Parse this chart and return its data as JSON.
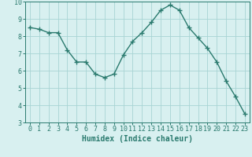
{
  "x": [
    0,
    1,
    2,
    3,
    4,
    5,
    6,
    7,
    8,
    9,
    10,
    11,
    12,
    13,
    14,
    15,
    16,
    17,
    18,
    19,
    20,
    21,
    22,
    23
  ],
  "y": [
    8.5,
    8.4,
    8.2,
    8.2,
    7.2,
    6.5,
    6.5,
    5.8,
    5.6,
    5.8,
    6.9,
    7.7,
    8.2,
    8.8,
    9.5,
    9.8,
    9.5,
    8.5,
    7.9,
    7.3,
    6.5,
    5.4,
    4.5,
    3.5
  ],
  "line_color": "#2a7a6e",
  "marker": "+",
  "marker_size": 4,
  "marker_linewidth": 1.0,
  "line_width": 1.0,
  "bg_color": "#d8f0f0",
  "grid_color": "#a8d4d4",
  "xlabel": "Humidex (Indice chaleur)",
  "xlim": [
    -0.5,
    23.5
  ],
  "ylim": [
    3,
    10
  ],
  "yticks": [
    3,
    4,
    5,
    6,
    7,
    8,
    9,
    10
  ],
  "xticks": [
    0,
    1,
    2,
    3,
    4,
    5,
    6,
    7,
    8,
    9,
    10,
    11,
    12,
    13,
    14,
    15,
    16,
    17,
    18,
    19,
    20,
    21,
    22,
    23
  ],
  "label_fontsize": 7,
  "tick_fontsize": 6
}
